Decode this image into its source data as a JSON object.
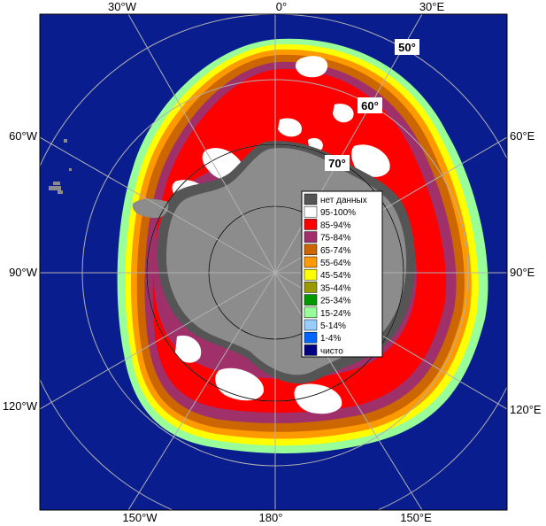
{
  "map": {
    "top_labels": [
      "30°W",
      "0°",
      "30°E"
    ],
    "left_labels": [
      "60°W",
      "90°W",
      "120°W"
    ],
    "right_labels": [
      "60°E",
      "90°E",
      "120°E"
    ],
    "bottom_labels": [
      "150°W",
      "180°",
      "150°E"
    ],
    "lat_labels": [
      "50°",
      "60°",
      "70°"
    ]
  },
  "legend": {
    "items": [
      {
        "label": "нет данных",
        "color": "#555555"
      },
      {
        "label": "95-100%",
        "color": "#ffffff"
      },
      {
        "label": "85-94%",
        "color": "#ff0000"
      },
      {
        "label": "75-84%",
        "color": "#a0306a"
      },
      {
        "label": "65-74%",
        "color": "#cc6600"
      },
      {
        "label": "55-64%",
        "color": "#ff9900"
      },
      {
        "label": "45-54%",
        "color": "#ffff00"
      },
      {
        "label": "35-44%",
        "color": "#999900"
      },
      {
        "label": "25-34%",
        "color": "#009900"
      },
      {
        "label": "15-24%",
        "color": "#99ff99"
      },
      {
        "label": "5-14%",
        "color": "#99ccff"
      },
      {
        "label": "1-4%",
        "color": "#0066ff"
      },
      {
        "label": "чисто",
        "color": "#000080"
      }
    ]
  },
  "colors": {
    "ocean": "#0a1d8f",
    "land": "#8c8c8c",
    "no_data": "#555555",
    "grid": "#b0b0b0"
  }
}
